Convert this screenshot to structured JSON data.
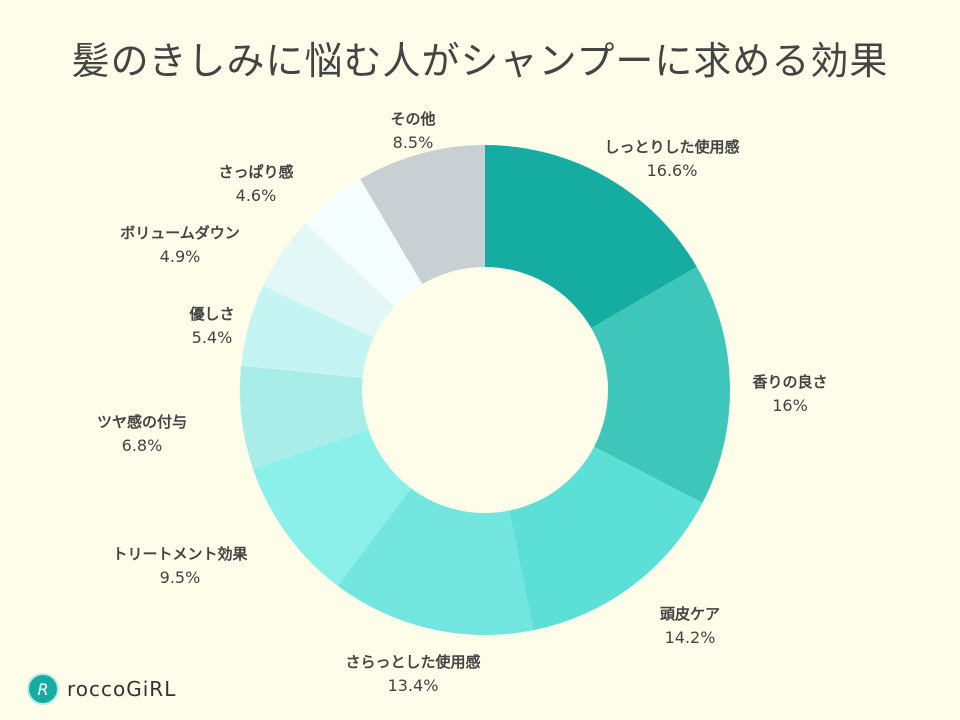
{
  "chart_data": {
    "type": "pie",
    "donut": true,
    "title": "髪のきしみに悩む人がシャンプーに求める効果",
    "slices": [
      {
        "label": "しっとりした使用感",
        "value": 16.6,
        "display": "16.6%",
        "color": "#15ada2"
      },
      {
        "label": "香りの良さ",
        "value": 16,
        "display": "16%",
        "color": "#3ec6ba"
      },
      {
        "label": "頭皮ケア",
        "value": 14.2,
        "display": "14.2%",
        "color": "#5bdfd6"
      },
      {
        "label": "さらっとした使用感",
        "value": 13.4,
        "display": "13.4%",
        "color": "#72e6de"
      },
      {
        "label": "トリートメント効果",
        "value": 9.5,
        "display": "9.5%",
        "color": "#8af0e9"
      },
      {
        "label": "ツヤ感の付与",
        "value": 6.8,
        "display": "6.8%",
        "color": "#a8ede8"
      },
      {
        "label": "優しさ",
        "value": 5.4,
        "display": "5.4%",
        "color": "#c4f5f2"
      },
      {
        "label": "ボリュームダウン",
        "value": 4.9,
        "display": "4.9%",
        "color": "#e2f7f6"
      },
      {
        "label": "さっぱり感",
        "value": 4.6,
        "display": "4.6%",
        "color": "#f5fefe"
      },
      {
        "label": "その他",
        "value": 8.5,
        "display": "8.5%",
        "color": "#c8d0d4"
      }
    ]
  },
  "brand": {
    "name": "roccoGiRL",
    "mark": "R"
  },
  "background": "#fdfde9"
}
